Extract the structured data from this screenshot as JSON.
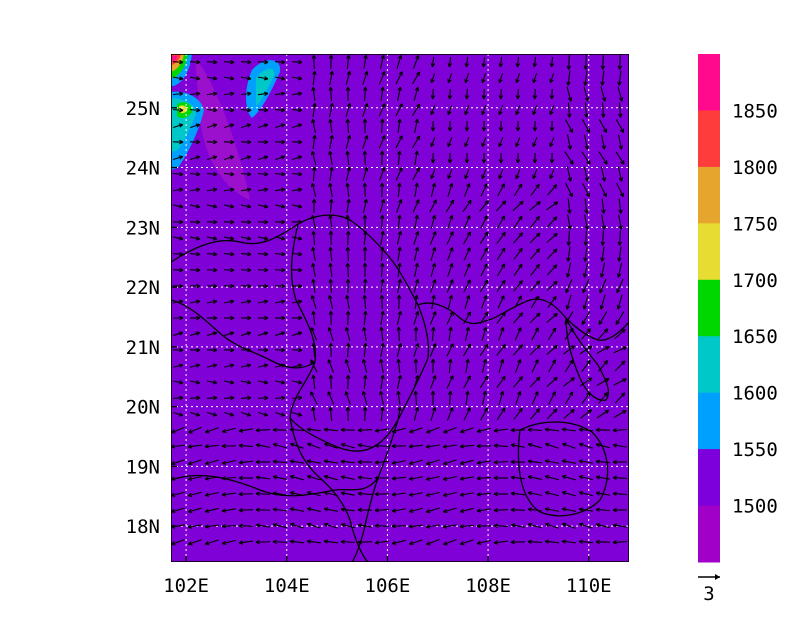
{
  "map": {
    "lon_range": [
      101.7,
      110.8
    ],
    "lat_range": [
      17.4,
      25.9
    ],
    "background_fill": "#8000d8",
    "x_ticks": [
      {
        "lon": 102,
        "label": "102E"
      },
      {
        "lon": 104,
        "label": "104E"
      },
      {
        "lon": 106,
        "label": "106E"
      },
      {
        "lon": 108,
        "label": "108E"
      },
      {
        "lon": 110,
        "label": "110E"
      }
    ],
    "y_ticks": [
      {
        "lat": 25,
        "label": "25N"
      },
      {
        "lat": 24,
        "label": "24N"
      },
      {
        "lat": 23,
        "label": "23N"
      },
      {
        "lat": 22,
        "label": "22N"
      },
      {
        "lat": 21,
        "label": "21N"
      },
      {
        "lat": 20,
        "label": "20N"
      },
      {
        "lat": 19,
        "label": "19N"
      },
      {
        "lat": 18,
        "label": "18N"
      }
    ],
    "grid": "dotted-white",
    "vector_reference_label": "3"
  },
  "legend": {
    "colors": [
      "#ff0a8c",
      "#ff3c3c",
      "#e6a52d",
      "#e6dc32",
      "#00d700",
      "#00c8c8",
      "#00a0ff",
      "#7d00dc",
      "#a000c8"
    ],
    "labels": [
      "1850",
      "1800",
      "1750",
      "1700",
      "1650",
      "1600",
      "1550",
      "1500"
    ]
  },
  "colors": {
    "coast": "#000000",
    "grid": "#ffffff",
    "arrow": "#000000"
  }
}
